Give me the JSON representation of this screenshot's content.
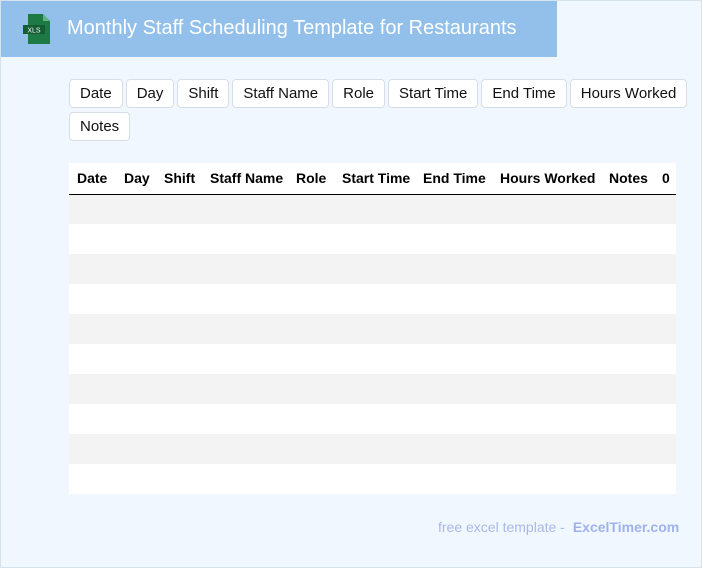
{
  "header": {
    "title": "Monthly Staff Scheduling Template for Restaurants",
    "logo_text": "XLS",
    "color": "#92c0ea"
  },
  "chips": [
    "Date",
    "Day",
    "Shift",
    "Staff Name",
    "Role",
    "Start Time",
    "End Time",
    "Hours Worked",
    "Notes"
  ],
  "table": {
    "headers": [
      "Date",
      "Day",
      "Shift",
      "Staff Name",
      "Role",
      "Start Time",
      "End Time",
      "Hours Worked",
      "Notes",
      "0"
    ],
    "row_count": 10
  },
  "footer": {
    "text": "free excel template -",
    "brand": "ExcelTimer.com"
  }
}
